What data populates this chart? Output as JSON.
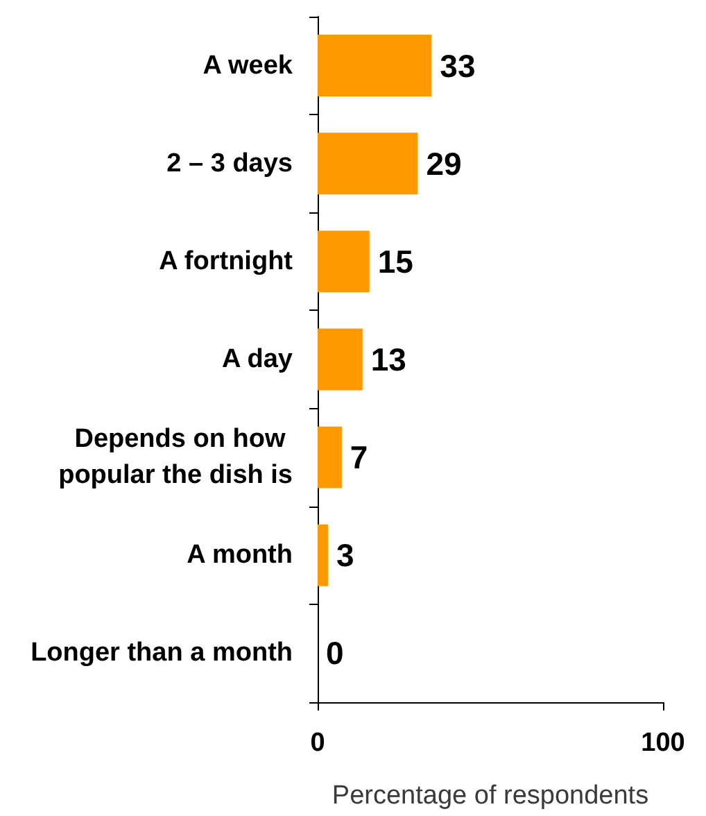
{
  "chart_data": {
    "type": "bar",
    "orientation": "horizontal",
    "categories": [
      "A week",
      "2 – 3 days",
      "A fortnight",
      "A day",
      "Depends on how popular the dish is",
      "A month",
      "Longer than a month"
    ],
    "values": [
      33,
      29,
      15,
      13,
      7,
      3,
      0
    ],
    "color": "#ff9900",
    "xlim": [
      0,
      100
    ],
    "xticks": [
      0,
      100
    ],
    "xlabel": "Percentage of respondents",
    "data_labels": true
  }
}
